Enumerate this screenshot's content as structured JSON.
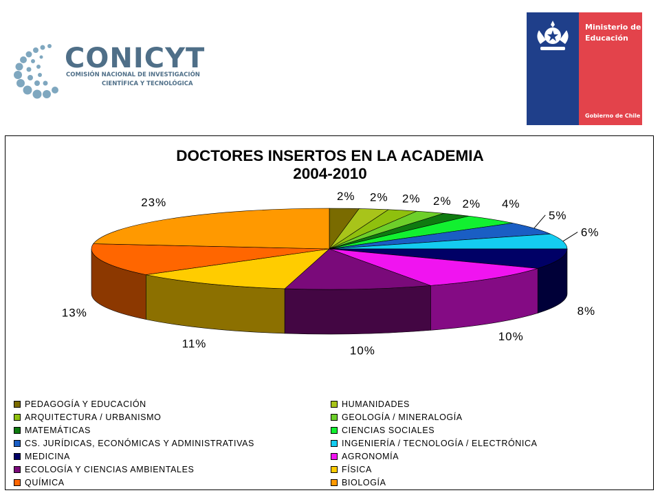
{
  "header": {
    "conicyt": {
      "name": "CONICYT",
      "line1": "COMISIÓN NACIONAL DE INVESTIGACIÓN",
      "line2": "CIENTÍFICA Y TECNOLÓGICA"
    },
    "ministerio": {
      "line1": "Ministerio de",
      "line2": "Educación",
      "footer": "Gobierno de Chile",
      "colors": {
        "blue": "#1f3f8a",
        "red": "#e3434b"
      }
    }
  },
  "chart_data": {
    "type": "pie",
    "title_line1": "DOCTORES INSERTOS EN LA ACADEMIA",
    "title_line2": "2004-2010",
    "three_d": true,
    "legend_position": "bottom",
    "slices": [
      {
        "name": "PEDAGOGÍA Y EDUCACIÓN",
        "value": 2,
        "label": "2%",
        "color": "#7a6b00"
      },
      {
        "name": "HUMANIDADES",
        "value": 2,
        "label": "2%",
        "color": "#a8c41a"
      },
      {
        "name": "ARQUITECTURA / URBANISMO",
        "value": 2,
        "label": "2%",
        "color": "#8fc00e"
      },
      {
        "name": "GEOLOGÍA / MINERALOGÍA",
        "value": 2,
        "label": "2%",
        "color": "#6dcf2a"
      },
      {
        "name": "MATEMÁTICAS",
        "value": 2,
        "label": "2%",
        "color": "#0f7a10"
      },
      {
        "name": "CIENCIAS SOCIALES",
        "value": 4,
        "label": "4%",
        "color": "#12f030"
      },
      {
        "name": "CS. JURÍDICAS,  ECONÓMICAS Y ADMINISTRATIVAS",
        "value": 5,
        "label": "5%",
        "color": "#1a5ec4"
      },
      {
        "name": "INGENIERÍA / TECNOLOGÍA / ELECTRÓNICA",
        "value": 6,
        "label": "6%",
        "color": "#14ccf0"
      },
      {
        "name": "MEDICINA",
        "value": 8,
        "label": "8%",
        "color": "#000066"
      },
      {
        "name": "AGRONOMÍA",
        "value": 10,
        "label": "10%",
        "color": "#f014f0"
      },
      {
        "name": "ECOLOGÍA Y CIENCIAS AMBIENTALES",
        "value": 10,
        "label": "10%",
        "color": "#7a0a7a"
      },
      {
        "name": "FÍSICA",
        "value": 11,
        "label": "11%",
        "color": "#ffcc00"
      },
      {
        "name": "QUÍMICA",
        "value": 13,
        "label": "13%",
        "color": "#ff6600"
      },
      {
        "name": "BIOLOGÍA",
        "value": 23,
        "label": "23%",
        "color": "#ff9900"
      }
    ]
  }
}
